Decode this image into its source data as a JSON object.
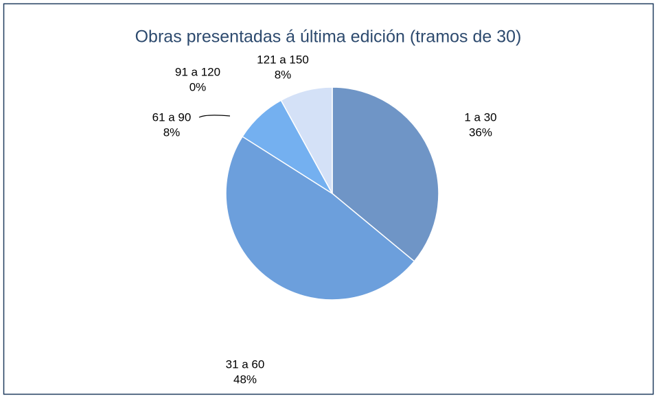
{
  "chart_data": {
    "type": "pie",
    "title": "Obras presentadas á última edición (tramos de 30)",
    "categories": [
      "1 a 30",
      "31 a 60",
      "61 a 90",
      "91 a 120",
      "121 a 150"
    ],
    "values": [
      36,
      48,
      8,
      0,
      8
    ],
    "value_labels": [
      "36%",
      "48%",
      "8%",
      "0%",
      "8%"
    ],
    "colors": [
      "#6f95c6",
      "#6c9fdc",
      "#74b0f0",
      "#a9c8f2",
      "#d4e1f7"
    ]
  }
}
